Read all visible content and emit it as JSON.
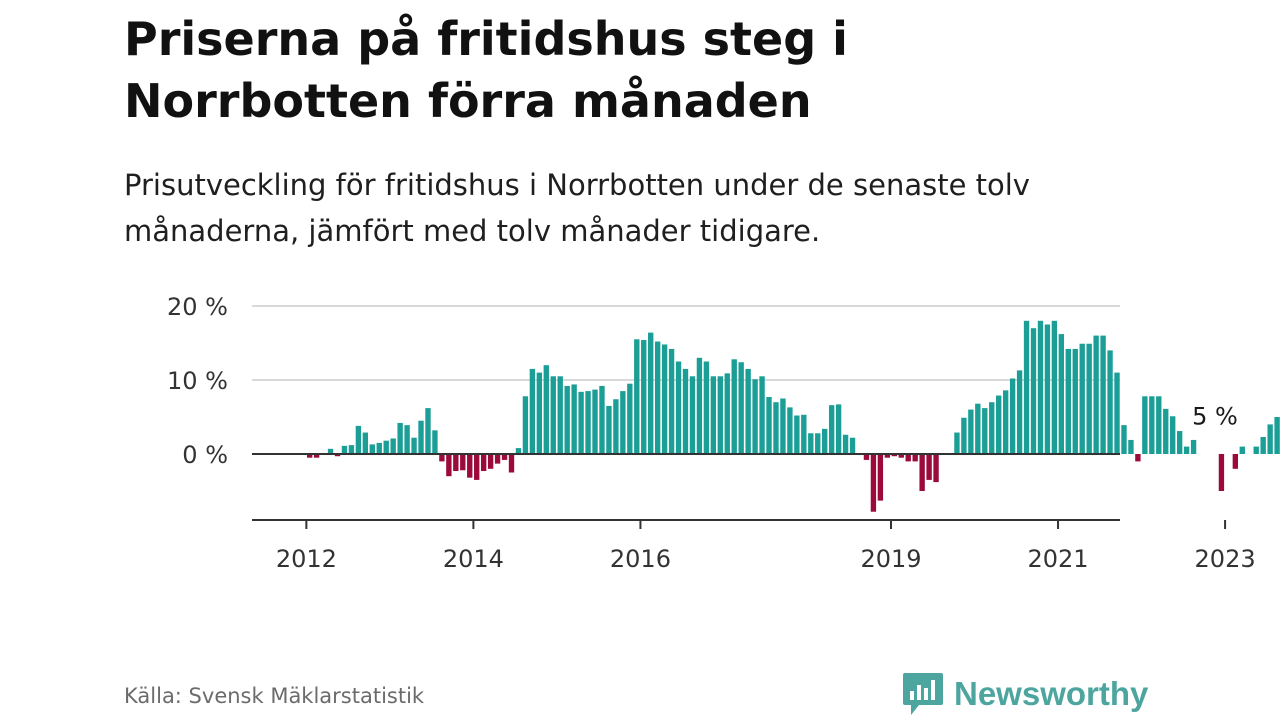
{
  "title": "Priserna på fritidshus steg i Norrbotten förra månaden",
  "subtitle": "Prisutveckling för fritidshus i Norrbotten under de senaste tolv månaderna, jämfört med tolv månader tidigare.",
  "source": "Källa: Svensk Mäklarstatistik",
  "brand": {
    "name": "Newsworthy",
    "color": "#4da59f"
  },
  "colors": {
    "positive": "#1a9e96",
    "negative": "#9b0a3a",
    "grid": "#d9d9d9",
    "zero": "#333333"
  },
  "chart_data": {
    "type": "bar",
    "x_unit": "month",
    "x_start": "2011-10",
    "ylim": [
      -9,
      20
    ],
    "yticks": [
      {
        "value": 0,
        "label": "0 %"
      },
      {
        "value": 10,
        "label": "10 %"
      },
      {
        "value": 20,
        "label": "20 %"
      }
    ],
    "xticks": [
      {
        "date": "2012-01",
        "label": "2012"
      },
      {
        "date": "2014-01",
        "label": "2014"
      },
      {
        "date": "2016-01",
        "label": "2016"
      },
      {
        "date": "2019-01",
        "label": "2019"
      },
      {
        "date": "2021-01",
        "label": "2021"
      },
      {
        "date": "2023-01",
        "label": "2023"
      }
    ],
    "annotation": {
      "text": "5 %",
      "date": "2023-03"
    },
    "values": [
      null,
      null,
      null,
      -0.5,
      -0.5,
      0,
      0.7,
      -0.3,
      1.1,
      1.2,
      3.8,
      2.9,
      1.3,
      1.5,
      1.8,
      2.1,
      4.2,
      3.9,
      2.2,
      4.5,
      6.2,
      3.2,
      -1.0,
      -3.0,
      -2.3,
      -2.2,
      -3.2,
      -3.5,
      -2.3,
      -2.0,
      -1.3,
      -0.8,
      -2.5,
      0.8,
      7.8,
      11.5,
      11.0,
      12.0,
      10.5,
      10.5,
      9.2,
      9.4,
      8.4,
      8.5,
      8.7,
      9.2,
      6.5,
      7.4,
      8.5,
      9.5,
      15.5,
      15.4,
      16.4,
      15.2,
      14.8,
      14.2,
      12.5,
      11.5,
      10.5,
      13.0,
      12.5,
      10.5,
      10.5,
      10.9,
      12.8,
      12.4,
      11.5,
      10.1,
      10.5,
      7.7,
      7.0,
      7.5,
      6.3,
      5.2,
      5.3,
      2.8,
      2.8,
      3.4,
      6.6,
      6.7,
      2.6,
      2.2,
      0,
      -0.8,
      -7.8,
      -6.3,
      -0.5,
      -0.3,
      -0.5,
      -1.0,
      -1.0,
      -5.0,
      -3.5,
      -3.8,
      0,
      0,
      2.9,
      4.9,
      6.0,
      6.8,
      6.2,
      7.0,
      7.9,
      8.6,
      10.2,
      11.3,
      18.0,
      17.0,
      18.0,
      17.5,
      18.0,
      16.2,
      14.2,
      14.2,
      14.9,
      14.9,
      16.0,
      16.0,
      14.0,
      11.0,
      3.9,
      1.9,
      -1.0,
      7.8,
      7.8,
      7.8,
      6.1,
      5.1,
      3.1,
      1.0,
      1.9,
      0,
      0,
      0,
      -5.0,
      0,
      -2.0,
      1.0,
      0,
      1.0,
      2.3,
      4.0,
      5.0
    ]
  }
}
